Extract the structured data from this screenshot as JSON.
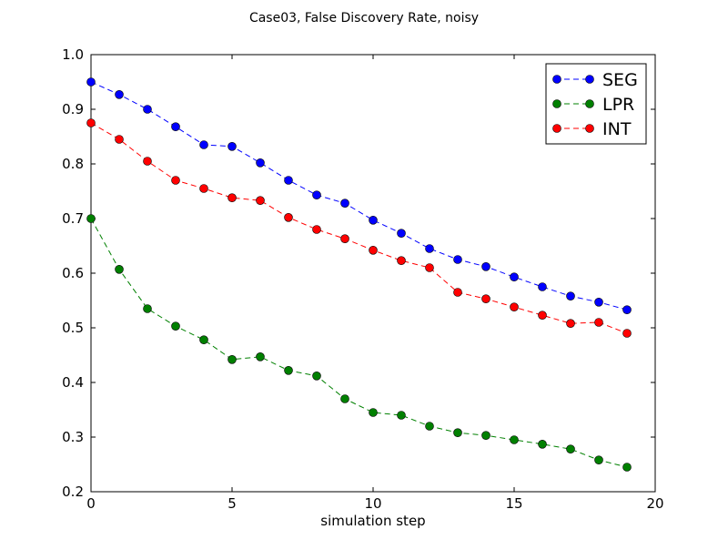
{
  "chart_data": {
    "type": "line",
    "title": "Case03, False Discovery Rate, noisy",
    "xlabel": "simulation step",
    "ylabel": "",
    "xlim": [
      0,
      20
    ],
    "ylim": [
      0.2,
      1.0
    ],
    "xticks": [
      "0",
      "5",
      "10",
      "15",
      "20"
    ],
    "yticks": [
      "0.2",
      "0.3",
      "0.4",
      "0.5",
      "0.6",
      "0.7",
      "0.8",
      "0.9",
      "1.0"
    ],
    "grid": false,
    "legend_position": "top-right",
    "x": [
      0,
      1,
      2,
      3,
      4,
      5,
      6,
      7,
      8,
      9,
      10,
      11,
      12,
      13,
      14,
      15,
      16,
      17,
      18,
      19
    ],
    "series": [
      {
        "name": "SEG",
        "color": "#0000ff",
        "values": [
          0.95,
          0.927,
          0.9,
          0.868,
          0.835,
          0.832,
          0.802,
          0.77,
          0.743,
          0.728,
          0.697,
          0.673,
          0.645,
          0.625,
          0.612,
          0.593,
          0.575,
          0.558,
          0.547,
          0.533
        ]
      },
      {
        "name": "LPR",
        "color": "#008000",
        "values": [
          0.7,
          0.607,
          0.535,
          0.503,
          0.478,
          0.442,
          0.447,
          0.422,
          0.412,
          0.37,
          0.345,
          0.34,
          0.32,
          0.308,
          0.303,
          0.295,
          0.287,
          0.278,
          0.258,
          0.245
        ]
      },
      {
        "name": "INT",
        "color": "#ff0000",
        "values": [
          0.875,
          0.845,
          0.805,
          0.77,
          0.755,
          0.738,
          0.733,
          0.702,
          0.68,
          0.663,
          0.642,
          0.623,
          0.61,
          0.565,
          0.553,
          0.538,
          0.523,
          0.508,
          0.51,
          0.49
        ]
      }
    ]
  }
}
